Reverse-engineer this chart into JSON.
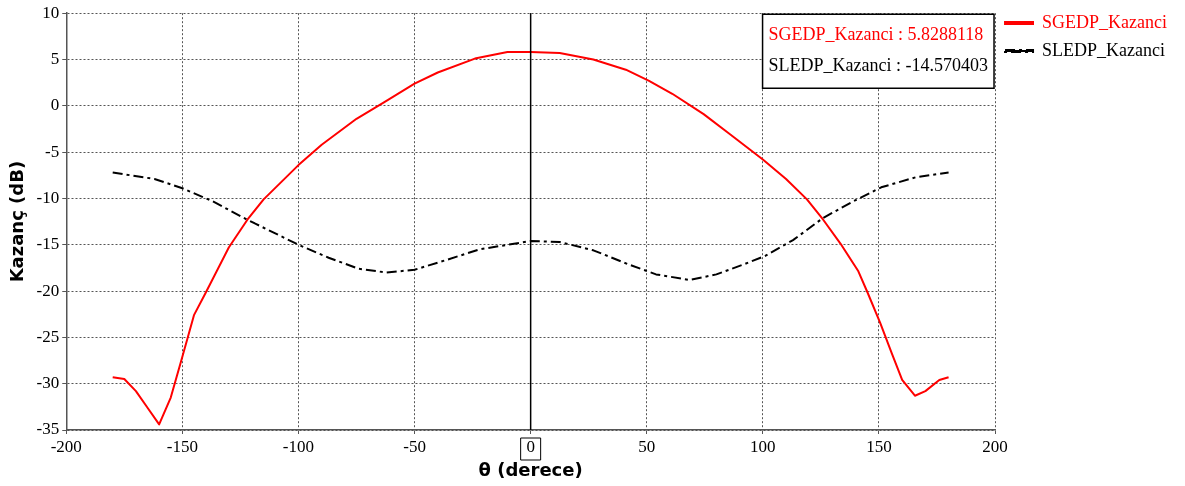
{
  "chart_data": {
    "type": "line",
    "xlabel": "θ (derece)",
    "ylabel": "Kazanç (dB)",
    "xlim": [
      -200,
      200
    ],
    "xticks": [
      -200,
      -150,
      -100,
      -50,
      0,
      50,
      100,
      150,
      200
    ],
    "ylim": [
      -35,
      10
    ],
    "yticks": [
      -35,
      -30,
      -25,
      -20,
      -15,
      -10,
      -5,
      0,
      5,
      10
    ],
    "grid": true,
    "legend": "right",
    "marker": "none",
    "ref_lines": [
      {
        "axis": "x",
        "value": 0,
        "color": "#000000",
        "line_style": "solid"
      }
    ],
    "annotations": [
      "SGEDP_Kazanci : 5.8288118",
      "SLEDP_Kazanci : -14.570403"
    ],
    "series": [
      {
        "name": "SGEDP_Kazanci",
        "color": "#ff0000",
        "line_style": "solid",
        "x": [
          -180,
          -175,
          -170,
          -165,
          -160,
          -155,
          -150,
          -145,
          -140,
          -130,
          -122,
          -115,
          -100,
          -90,
          -75,
          -63,
          -50,
          -40,
          -24,
          -10,
          0,
          12.5,
          27,
          41,
          51,
          61,
          74.5,
          86,
          100,
          110,
          119,
          126,
          133.5,
          141,
          145,
          150.5,
          155.5,
          160,
          165.5,
          170,
          176,
          180
        ],
        "values": [
          -29.3,
          -29.5,
          -30.8,
          -32.6,
          -34.4,
          -31.5,
          -27.1,
          -22.6,
          -20.2,
          -15.3,
          -12.3,
          -10.1,
          -6.4,
          -4.2,
          -1.4,
          0.4,
          2.4,
          3.6,
          5.1,
          5.8,
          5.8,
          5.7,
          5.0,
          3.9,
          2.7,
          1.3,
          -0.9,
          -3.1,
          -5.8,
          -7.9,
          -10.1,
          -12.3,
          -14.9,
          -17.8,
          -20.1,
          -23.4,
          -26.7,
          -29.6,
          -31.3,
          -30.8,
          -29.6,
          -29.3
        ]
      },
      {
        "name": "SLEDP_Kazanci",
        "color": "#000000",
        "line_style": "dashed",
        "x": [
          -180,
          -162,
          -150,
          -137,
          -122,
          -100,
          -87,
          -74,
          -62,
          -50,
          -37,
          -22,
          0,
          12.5,
          27,
          42,
          54,
          68.5,
          80,
          92,
          101,
          113,
          126,
          139,
          151,
          166,
          180
        ],
        "values": [
          -7.2,
          -7.9,
          -8.9,
          -10.3,
          -12.3,
          -15.0,
          -16.4,
          -17.6,
          -18.0,
          -17.7,
          -16.7,
          -15.5,
          -14.6,
          -14.7,
          -15.6,
          -17.1,
          -18.2,
          -18.8,
          -18.2,
          -17.1,
          -16.2,
          -14.5,
          -12.1,
          -10.3,
          -8.8,
          -7.7,
          -7.2
        ]
      }
    ]
  }
}
